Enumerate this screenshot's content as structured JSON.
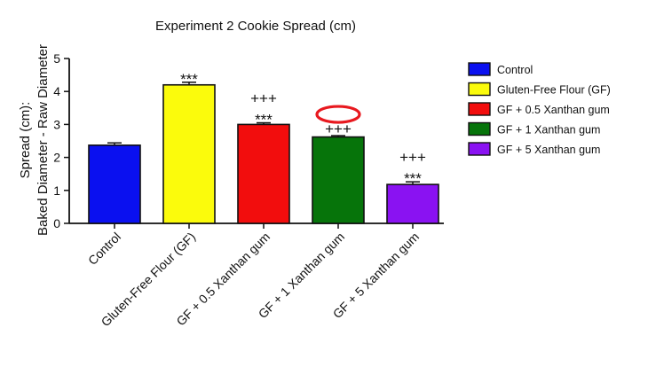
{
  "chart_data": {
    "type": "bar",
    "title": "Experiment 2 Cookie Spread (cm)",
    "ylabel_lines": [
      "Spread (cm):",
      "Baked Diameter - Raw Diameter"
    ],
    "xlabel": "",
    "ylim": [
      0,
      5
    ],
    "yticks": [
      "0",
      "1",
      "2",
      "3",
      "4",
      "5"
    ],
    "categories": [
      "Control",
      "Gluten-Free Flour (GF)",
      "GF + 0.5 Xanthan gum",
      "GF + 1 Xanthan gum",
      "GF + 5 Xanthan gum"
    ],
    "values": [
      2.37,
      4.2,
      3.0,
      2.62,
      1.18
    ],
    "errors": [
      0.07,
      0.08,
      0.05,
      0.04,
      0.08
    ],
    "colors": [
      "#0a10f0",
      "#fbfb0c",
      "#f20d0d",
      "#06740a",
      "#8a12f2"
    ],
    "significance": [
      {
        "plus": "",
        "stars": ""
      },
      {
        "plus": "",
        "stars": "***"
      },
      {
        "plus": "+++",
        "stars": "***"
      },
      {
        "plus": "+++",
        "stars": ""
      },
      {
        "plus": "+++",
        "stars": "***"
      }
    ],
    "highlight_index": 3,
    "highlight_color": "#e8191f",
    "legend": [
      "Control",
      "Gluten-Free Flour (GF)",
      "GF + 0.5 Xanthan gum",
      "GF + 1 Xanthan gum",
      "GF + 5 Xanthan gum"
    ],
    "legend_position": "right",
    "grid": false
  }
}
